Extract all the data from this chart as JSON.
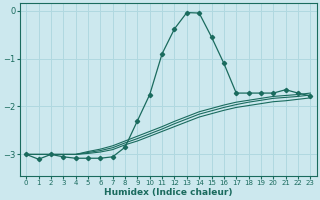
{
  "xlabel": "Humidex (Indice chaleur)",
  "xlim": [
    -0.5,
    23.5
  ],
  "ylim": [
    -3.45,
    0.15
  ],
  "yticks": [
    0,
    -1,
    -2,
    -3
  ],
  "xticks": [
    0,
    1,
    2,
    3,
    4,
    5,
    6,
    7,
    8,
    9,
    10,
    11,
    12,
    13,
    14,
    15,
    16,
    17,
    18,
    19,
    20,
    21,
    22,
    23
  ],
  "bg_color": "#cce8ee",
  "grid_color": "#b0d8e0",
  "line_color": "#1a6b5e",
  "main_x": [
    0,
    1,
    2,
    3,
    4,
    5,
    6,
    7,
    8,
    9,
    10,
    11,
    12,
    13,
    14,
    15,
    16,
    17,
    18,
    19,
    20,
    21,
    22,
    23
  ],
  "main_y": [
    -3.0,
    -3.1,
    -3.0,
    -3.05,
    -3.08,
    -3.08,
    -3.08,
    -3.05,
    -2.85,
    -2.3,
    -1.75,
    -0.9,
    -0.38,
    -0.04,
    -0.05,
    -0.55,
    -1.1,
    -1.72,
    -1.72,
    -1.72,
    -1.72,
    -1.65,
    -1.72,
    -1.78
  ],
  "lin1_x": [
    0,
    1,
    2,
    3,
    4,
    5,
    6,
    7,
    8,
    9,
    10,
    11,
    12,
    13,
    14,
    15,
    16,
    17,
    18,
    19,
    20,
    21,
    22,
    23
  ],
  "lin1_y": [
    -3.0,
    -3.0,
    -3.0,
    -3.0,
    -3.0,
    -2.98,
    -2.95,
    -2.9,
    -2.8,
    -2.72,
    -2.62,
    -2.52,
    -2.42,
    -2.32,
    -2.22,
    -2.15,
    -2.08,
    -2.02,
    -1.98,
    -1.94,
    -1.9,
    -1.88,
    -1.85,
    -1.82
  ],
  "lin2_x": [
    0,
    1,
    2,
    3,
    4,
    5,
    6,
    7,
    8,
    9,
    10,
    11,
    12,
    13,
    14,
    15,
    16,
    17,
    18,
    19,
    20,
    21,
    22,
    23
  ],
  "lin2_y": [
    -3.0,
    -3.0,
    -3.0,
    -3.0,
    -3.0,
    -2.96,
    -2.92,
    -2.86,
    -2.76,
    -2.67,
    -2.57,
    -2.47,
    -2.36,
    -2.26,
    -2.16,
    -2.09,
    -2.02,
    -1.96,
    -1.91,
    -1.87,
    -1.83,
    -1.81,
    -1.79,
    -1.76
  ],
  "lin3_x": [
    0,
    1,
    2,
    3,
    4,
    5,
    6,
    7,
    8,
    9,
    10,
    11,
    12,
    13,
    14,
    15,
    16,
    17,
    18,
    19,
    20,
    21,
    22,
    23
  ],
  "lin3_y": [
    -3.0,
    -3.0,
    -3.0,
    -3.0,
    -3.0,
    -2.94,
    -2.89,
    -2.82,
    -2.72,
    -2.62,
    -2.52,
    -2.42,
    -2.31,
    -2.21,
    -2.11,
    -2.04,
    -1.97,
    -1.91,
    -1.87,
    -1.83,
    -1.79,
    -1.77,
    -1.75,
    -1.72
  ]
}
